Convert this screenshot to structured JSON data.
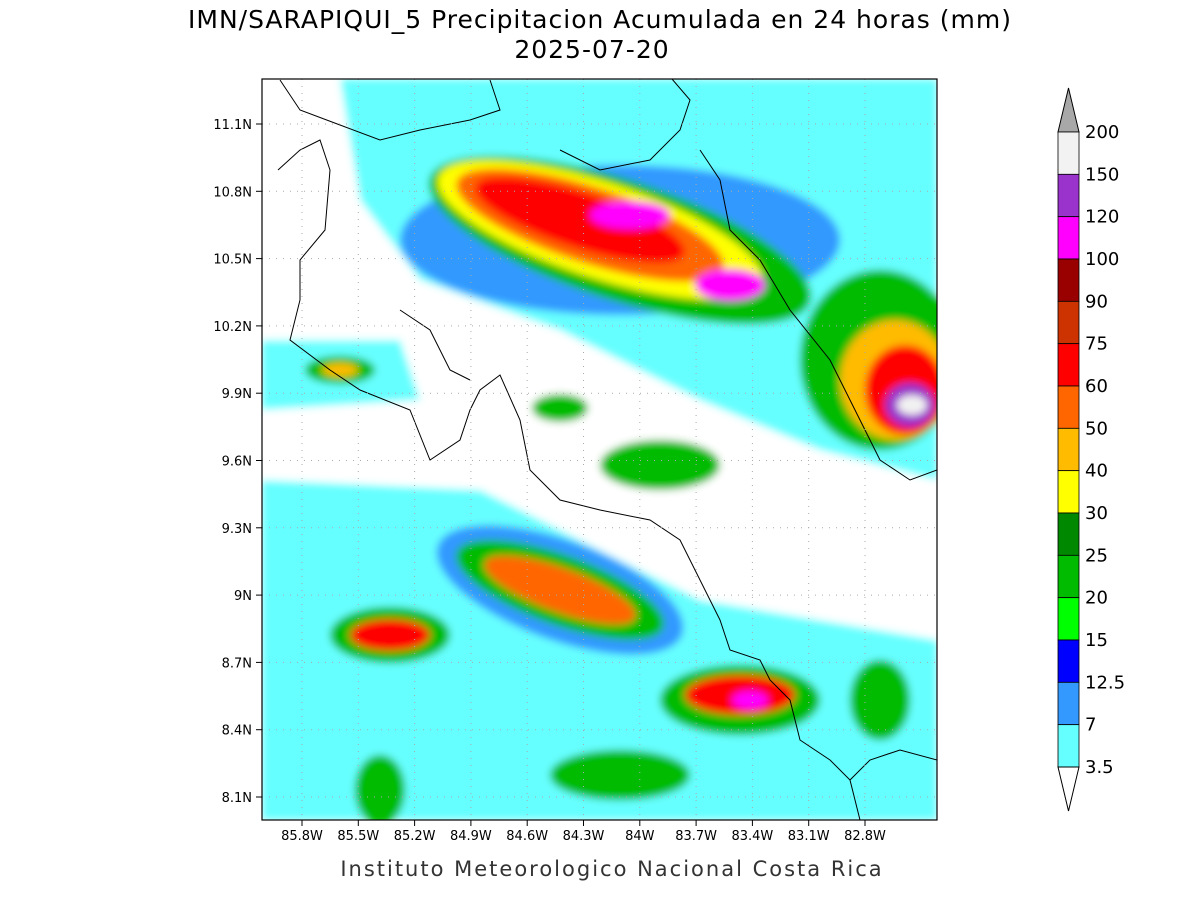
{
  "title": "IMN/SARAPIQUI_5 Precipitacion Acumulada en 24 horas (mm)",
  "subtitle": "2025-07-20",
  "lat_labels": [
    "11.1N",
    "10.8N",
    "10.5N",
    "10.2N",
    "9.9N",
    "9.6N",
    "9.3N",
    "9N",
    "8.7N",
    "8.4N",
    "8.1N"
  ],
  "lon_labels": [
    "85.8W",
    "85.5W",
    "85.2W",
    "84.9W",
    "84.6W",
    "84.3W",
    "84W",
    "83.7W",
    "83.4W",
    "83.1W",
    "82.8W"
  ],
  "colorbar": {
    "labels": [
      "200",
      "150",
      "120",
      "100",
      "90",
      "75",
      "60",
      "50",
      "40",
      "30",
      "25",
      "20",
      "15",
      "12.5",
      "7",
      "3.5"
    ],
    "colors": [
      "#f2f2f2",
      "#9933cc",
      "#ff00ff",
      "#990000",
      "#cc3300",
      "#ff0000",
      "#ff6600",
      "#ffbb00",
      "#ffff00",
      "#008800",
      "#00bb00",
      "#00ff00",
      "#0000ff",
      "#3399ff",
      "#66ffff"
    ],
    "over_color": "#a8a8a8",
    "under_color": "#ffffff"
  },
  "footer": "Instituto Meteorologico Nacional Costa Rica"
}
